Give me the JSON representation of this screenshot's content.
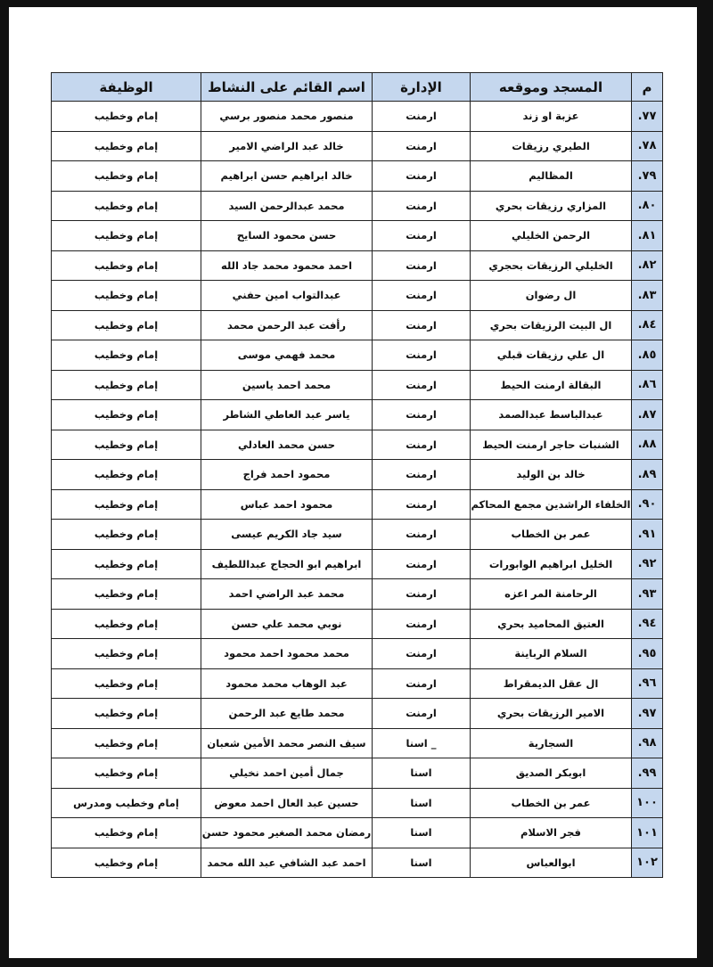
{
  "table": {
    "headers": [
      "م",
      "المسجد وموقعه",
      "الإدارة",
      "اسم القائم على النشاط",
      "الوظيفة"
    ],
    "header_color": "#c5d7ee",
    "rows": [
      [
        "٧٧.",
        "عزبة او زند",
        "ارمنت",
        "منصور محمد منصور برسي",
        "إمام وخطيب"
      ],
      [
        "٧٨.",
        "الطيري رزيقات",
        "ارمنت",
        "خالد عبد الراضي الامير",
        "إمام وخطيب"
      ],
      [
        "٧٩.",
        "المظاليم",
        "ارمنت",
        "خالد ابراهيم حسن ابراهيم",
        "إمام وخطيب"
      ],
      [
        "٨٠.",
        "المزاري رزيقات بحري",
        "ارمنت",
        "محمد عبدالرحمن السيد",
        "إمام وخطيب"
      ],
      [
        "٨١.",
        "الرحمن الخليلي",
        "ارمنت",
        "حسن محمود السايح",
        "إمام وخطيب"
      ],
      [
        "٨٢.",
        "الخليلي الرزيقات بحجري",
        "ارمنت",
        "احمد محمود محمد جاد الله",
        "إمام وخطيب"
      ],
      [
        "٨٣.",
        "ال رضوان",
        "ارمنت",
        "عبدالتواب امين حفني",
        "إمام وخطيب"
      ],
      [
        "٨٤.",
        "ال البيت الرزيقات بحري",
        "ارمنت",
        "رأفت عبد الرحمن محمد",
        "إمام وخطيب"
      ],
      [
        "٨٥.",
        "ال علي رزيقات قبلي",
        "ارمنت",
        "محمد فهمي موسى",
        "إمام وخطيب"
      ],
      [
        "٨٦.",
        "البقالة ارمنت الحيط",
        "ارمنت",
        "محمد احمد ياسين",
        "إمام وخطيب"
      ],
      [
        "٨٧.",
        "عبدالباسط عبدالصمد",
        "ارمنت",
        "ياسر عبد العاطي الشاطر",
        "إمام وخطيب"
      ],
      [
        "٨٨.",
        "الشنبات حاجر ارمنت الحيط",
        "ارمنت",
        "حسن محمد العادلي",
        "إمام وخطيب"
      ],
      [
        "٨٩.",
        "خالد بن الوليد",
        "ارمنت",
        "محمود احمد فراج",
        "إمام وخطيب"
      ],
      [
        "٩٠.",
        "الخلفاء الراشدين مجمع المحاكم",
        "ارمنت",
        "محمود احمد عباس",
        "إمام وخطيب"
      ],
      [
        "٩١.",
        "عمر بن الخطاب",
        "ارمنت",
        "سيد جاد الكريم عيسى",
        "إمام وخطيب"
      ],
      [
        "٩٢.",
        "الخليل ابراهيم الوابورات",
        "ارمنت",
        "ابراهيم ابو الحجاج عبداللطيف",
        "إمام وخطيب"
      ],
      [
        "٩٣.",
        "الرحامنة المر اعزه",
        "ارمنت",
        "محمد عبد الراضي احمد",
        "إمام وخطيب"
      ],
      [
        "٩٤.",
        "العتيق المحاميد بحري",
        "ارمنت",
        "نوبي محمد علي حسن",
        "إمام وخطيب"
      ],
      [
        "٩٥.",
        "السلام الرباينة",
        "ارمنت",
        "محمد محمود احمد محمود",
        "إمام وخطيب"
      ],
      [
        "٩٦.",
        "ال عقل الديمقراط",
        "ارمنت",
        "عبد الوهاب محمد محمود",
        "إمام وخطيب"
      ],
      [
        "٩٧.",
        "الامير الرزيقات بحري",
        "ارمنت",
        "محمد طايع عبد الرحمن",
        "إمام وخطيب"
      ],
      [
        "٩٨.",
        "السجارية",
        "_ اسنا",
        "سيف النصر محمد الأمين شعبان",
        "إمام وخطيب"
      ],
      [
        "٩٩.",
        "ابوبكر الصديق",
        "اسنا",
        "جمال أمين احمد نخيلي",
        "إمام وخطيب"
      ],
      [
        "١٠٠",
        "عمر بن الخطاب",
        "اسنا",
        "حسين عبد العال احمد معوض",
        "إمام وخطيب ومدرس"
      ],
      [
        "١٠١",
        "فجر الاسلام",
        "اسنا",
        "رمضان محمد الصغير محمود حسن",
        "إمام وخطيب"
      ],
      [
        "١٠٢",
        "ابوالعباس",
        "اسنا",
        "احمد عبد الشافي عبد الله محمد",
        "إمام وخطيب"
      ]
    ]
  }
}
